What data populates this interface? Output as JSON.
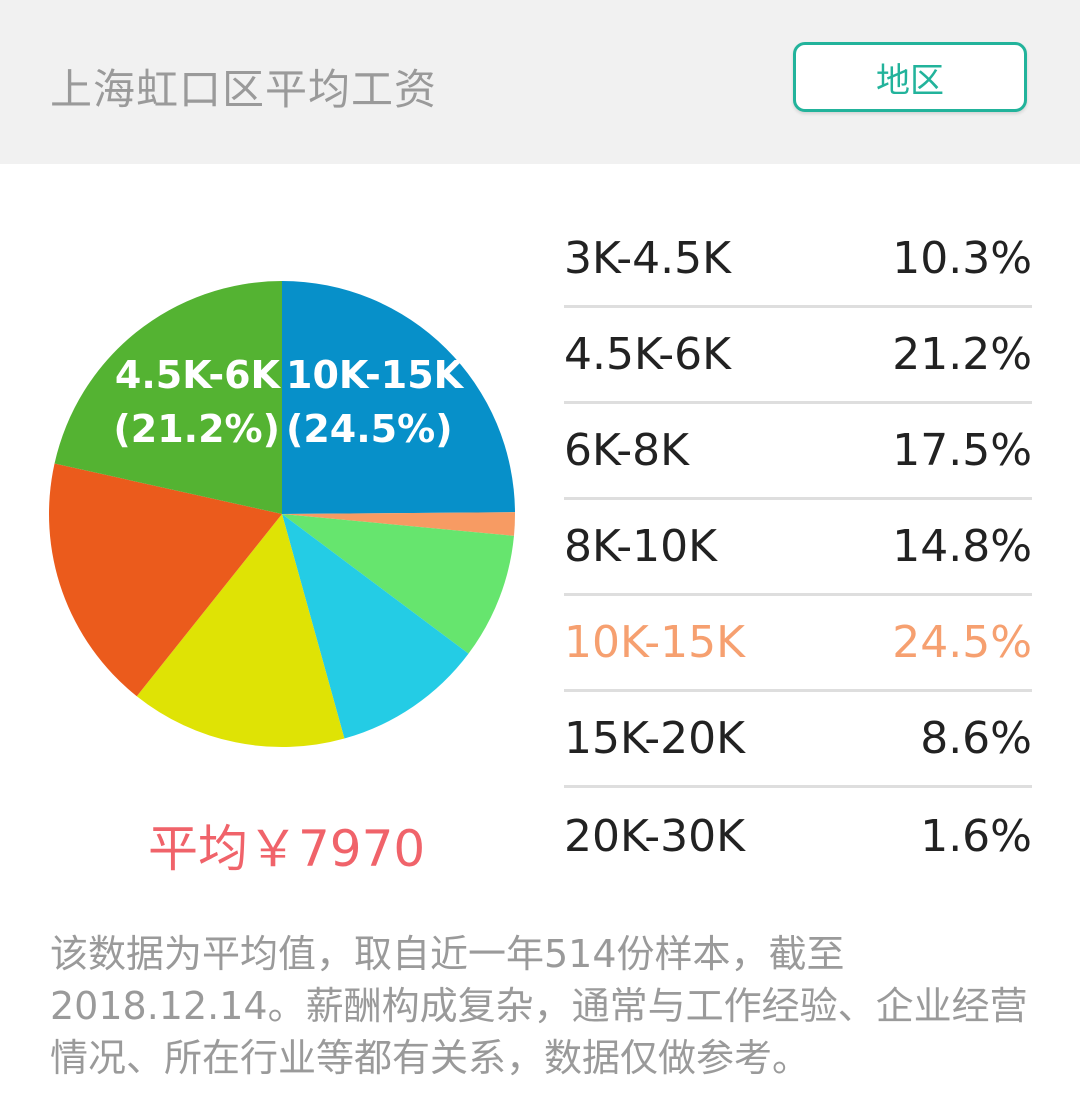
{
  "header": {
    "title": "上海虹口区平均工资",
    "region_button": "地区"
  },
  "average_label": "平均￥7970",
  "note": "该数据为平均值，取自近一年514份样本，截至2018.12.14。薪酬构成复杂，通常与工作经验、企业经营情况、所在行业等都有关系，数据仅做参考。",
  "colors": {
    "highlight": "#f6a070",
    "average": "#f0636a",
    "button": "#22b39b"
  },
  "chart_data": {
    "type": "pie",
    "title": "",
    "slices": [
      {
        "label": "10K-15K",
        "value": 24.5,
        "value_label": "24.5%",
        "color": "#0790c9",
        "show_label": true,
        "highlight": true
      },
      {
        "label": "20K-30K",
        "value": 1.6,
        "value_label": "1.6%",
        "color": "#f79b63",
        "show_label": false,
        "highlight": false
      },
      {
        "label": "15K-20K",
        "value": 8.6,
        "value_label": "8.6%",
        "color": "#66e56e",
        "show_label": false,
        "highlight": false
      },
      {
        "label": "3K-4.5K",
        "value": 10.3,
        "value_label": "10.3%",
        "color": "#24cce5",
        "show_label": false,
        "highlight": false
      },
      {
        "label": "8K-10K",
        "value": 14.8,
        "value_label": "14.8%",
        "color": "#dfe305",
        "show_label": false,
        "highlight": false
      },
      {
        "label": "6K-8K",
        "value": 17.5,
        "value_label": "17.5%",
        "color": "#eb5b1c",
        "show_label": false,
        "highlight": false
      },
      {
        "label": "4.5K-6K",
        "value": 21.2,
        "value_label": "21.2%",
        "color": "#54b332",
        "show_label": true,
        "highlight": false
      }
    ],
    "legend": [
      {
        "range": "3K-4.5K",
        "percent": "10.3%",
        "highlight": false
      },
      {
        "range": "4.5K-6K",
        "percent": "21.2%",
        "highlight": false
      },
      {
        "range": "6K-8K",
        "percent": "17.5%",
        "highlight": false
      },
      {
        "range": "8K-10K",
        "percent": "14.8%",
        "highlight": false
      },
      {
        "range": "10K-15K",
        "percent": "24.5%",
        "highlight": true
      },
      {
        "range": "15K-20K",
        "percent": "8.6%",
        "highlight": false
      },
      {
        "range": "20K-30K",
        "percent": "1.6%",
        "highlight": false
      }
    ]
  }
}
